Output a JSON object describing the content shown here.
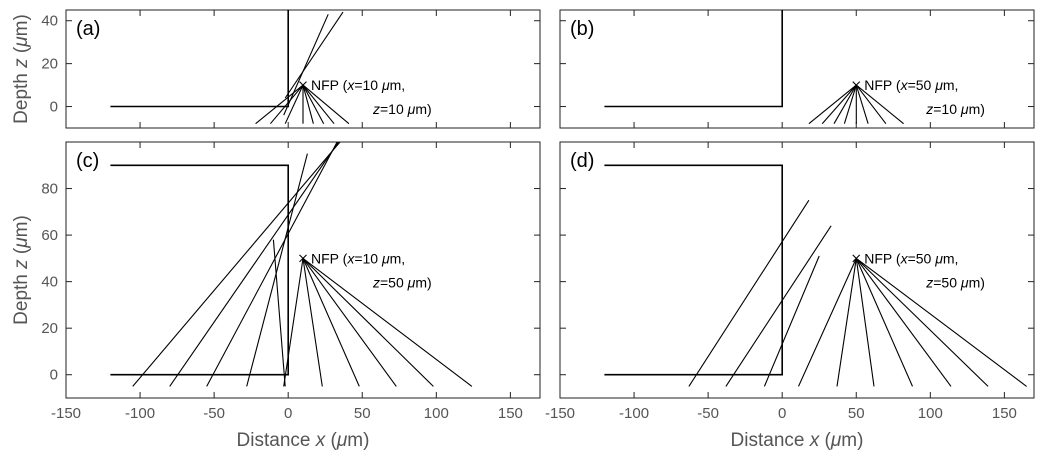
{
  "chart_data": [
    {
      "type": "line",
      "panel_label": "(a)",
      "xlim": [
        -150,
        170
      ],
      "ylim": [
        -10,
        45
      ],
      "xticks": [
        -150,
        -100,
        -50,
        0,
        50,
        100,
        150
      ],
      "yticks": [
        0,
        20,
        40
      ],
      "ylabel": "Depth z (μm)",
      "xlabel": "",
      "interface": [
        [
          -120,
          0
        ],
        [
          0,
          0
        ],
        [
          0,
          45
        ]
      ],
      "nfp": {
        "x": 10,
        "z": 10
      },
      "annotation": {
        "line1": "NFP (x=10 μm,",
        "line2": "z=10 μm)"
      },
      "rays": [
        [
          [
            10,
            10
          ],
          [
            -22,
            -8
          ]
        ],
        [
          [
            10,
            10
          ],
          [
            -12,
            -8
          ]
        ],
        [
          [
            10,
            10
          ],
          [
            -2,
            -8
          ]
        ],
        [
          [
            10,
            10
          ],
          [
            10,
            -8
          ]
        ],
        [
          [
            10,
            10
          ],
          [
            17,
            -8
          ]
        ],
        [
          [
            10,
            10
          ],
          [
            24,
            -8
          ]
        ],
        [
          [
            10,
            10
          ],
          [
            31,
            -8
          ]
        ],
        [
          [
            10,
            10
          ],
          [
            41,
            -8
          ]
        ],
        [
          [
            -3,
            -4
          ],
          [
            27,
            43
          ]
        ],
        [
          [
            -2,
            4
          ],
          [
            37,
            44
          ]
        ]
      ]
    },
    {
      "type": "line",
      "panel_label": "(b)",
      "xlim": [
        -150,
        170
      ],
      "ylim": [
        -10,
        45
      ],
      "xticks": [
        -150,
        -100,
        -50,
        0,
        50,
        100,
        150
      ],
      "yticks": [
        0,
        20,
        40
      ],
      "ylabel": "",
      "xlabel": "",
      "interface": [
        [
          -120,
          0
        ],
        [
          0,
          0
        ],
        [
          0,
          45
        ]
      ],
      "nfp": {
        "x": 50,
        "z": 10
      },
      "annotation": {
        "line1": "NFP (x=50 μm,",
        "line2": "z=10 μm)"
      },
      "rays": [
        [
          [
            50,
            10
          ],
          [
            18,
            -8
          ]
        ],
        [
          [
            50,
            10
          ],
          [
            27,
            -8
          ]
        ],
        [
          [
            50,
            10
          ],
          [
            35,
            -8
          ]
        ],
        [
          [
            50,
            10
          ],
          [
            42,
            -8
          ]
        ],
        [
          [
            50,
            10
          ],
          [
            50,
            -8
          ]
        ],
        [
          [
            50,
            10
          ],
          [
            58,
            -8
          ]
        ],
        [
          [
            50,
            10
          ],
          [
            70,
            -8
          ]
        ],
        [
          [
            50,
            10
          ],
          [
            82,
            -8
          ]
        ]
      ]
    },
    {
      "type": "line",
      "panel_label": "(c)",
      "xlim": [
        -150,
        170
      ],
      "ylim": [
        -10,
        100
      ],
      "xticks": [
        -150,
        -100,
        -50,
        0,
        50,
        100,
        150
      ],
      "yticks": [
        0,
        20,
        40,
        60,
        80
      ],
      "ylabel": "Depth z (μm)",
      "xlabel": "Distance x (μm)",
      "xticklabels": [
        "-150",
        "-100",
        "-50",
        "0",
        "50",
        "100",
        "150"
      ],
      "interface": [
        [
          -120,
          90
        ],
        [
          0,
          90
        ],
        [
          0,
          0
        ],
        [
          -120,
          0
        ]
      ],
      "nfp": {
        "x": 10,
        "z": 50
      },
      "annotation": {
        "line1": "NFP (x=10 μm,",
        "line2": "z=50 μm)"
      },
      "rays": [
        [
          [
            10,
            50
          ],
          [
            -3,
            -5
          ]
        ],
        [
          [
            10,
            50
          ],
          [
            23,
            -5
          ]
        ],
        [
          [
            10,
            50
          ],
          [
            48,
            -5
          ]
        ],
        [
          [
            10,
            50
          ],
          [
            73,
            -5
          ]
        ],
        [
          [
            10,
            50
          ],
          [
            98,
            -5
          ]
        ],
        [
          [
            10,
            50
          ],
          [
            124,
            -5
          ]
        ],
        [
          [
            -105,
            -5
          ],
          [
            35,
            100
          ]
        ],
        [
          [
            -80,
            -5
          ],
          [
            34,
            100
          ]
        ],
        [
          [
            -55,
            -5
          ],
          [
            33,
            100
          ]
        ],
        [
          [
            -28,
            -5
          ],
          [
            13,
            95
          ]
        ],
        [
          [
            -2,
            -5
          ],
          [
            -10,
            58
          ]
        ]
      ]
    },
    {
      "type": "line",
      "panel_label": "(d)",
      "xlim": [
        -150,
        170
      ],
      "ylim": [
        -10,
        100
      ],
      "xticks": [
        -150,
        -100,
        -50,
        0,
        50,
        100,
        150
      ],
      "yticks": [
        0,
        20,
        40,
        60,
        80
      ],
      "ylabel": "",
      "xlabel": "Distance x (μm)",
      "xticklabels": [
        "-150",
        "-100",
        "-50",
        "0",
        "50",
        "100",
        "150"
      ],
      "interface": [
        [
          -120,
          90
        ],
        [
          0,
          90
        ],
        [
          0,
          0
        ],
        [
          -120,
          0
        ]
      ],
      "nfp": {
        "x": 50,
        "z": 50
      },
      "annotation": {
        "line1": "NFP (x=50 μm,",
        "line2": "z=50 μm)"
      },
      "rays": [
        [
          [
            50,
            50
          ],
          [
            11,
            -5
          ]
        ],
        [
          [
            50,
            50
          ],
          [
            37,
            -5
          ]
        ],
        [
          [
            50,
            50
          ],
          [
            62,
            -5
          ]
        ],
        [
          [
            50,
            50
          ],
          [
            88,
            -5
          ]
        ],
        [
          [
            50,
            50
          ],
          [
            114,
            -5
          ]
        ],
        [
          [
            50,
            50
          ],
          [
            139,
            -5
          ]
        ],
        [
          [
            50,
            50
          ],
          [
            165,
            -5
          ]
        ],
        [
          [
            -63,
            -5
          ],
          [
            18,
            75
          ]
        ],
        [
          [
            -38,
            -5
          ],
          [
            33,
            64
          ]
        ],
        [
          [
            -12,
            -5
          ],
          [
            25,
            51
          ]
        ]
      ]
    }
  ]
}
